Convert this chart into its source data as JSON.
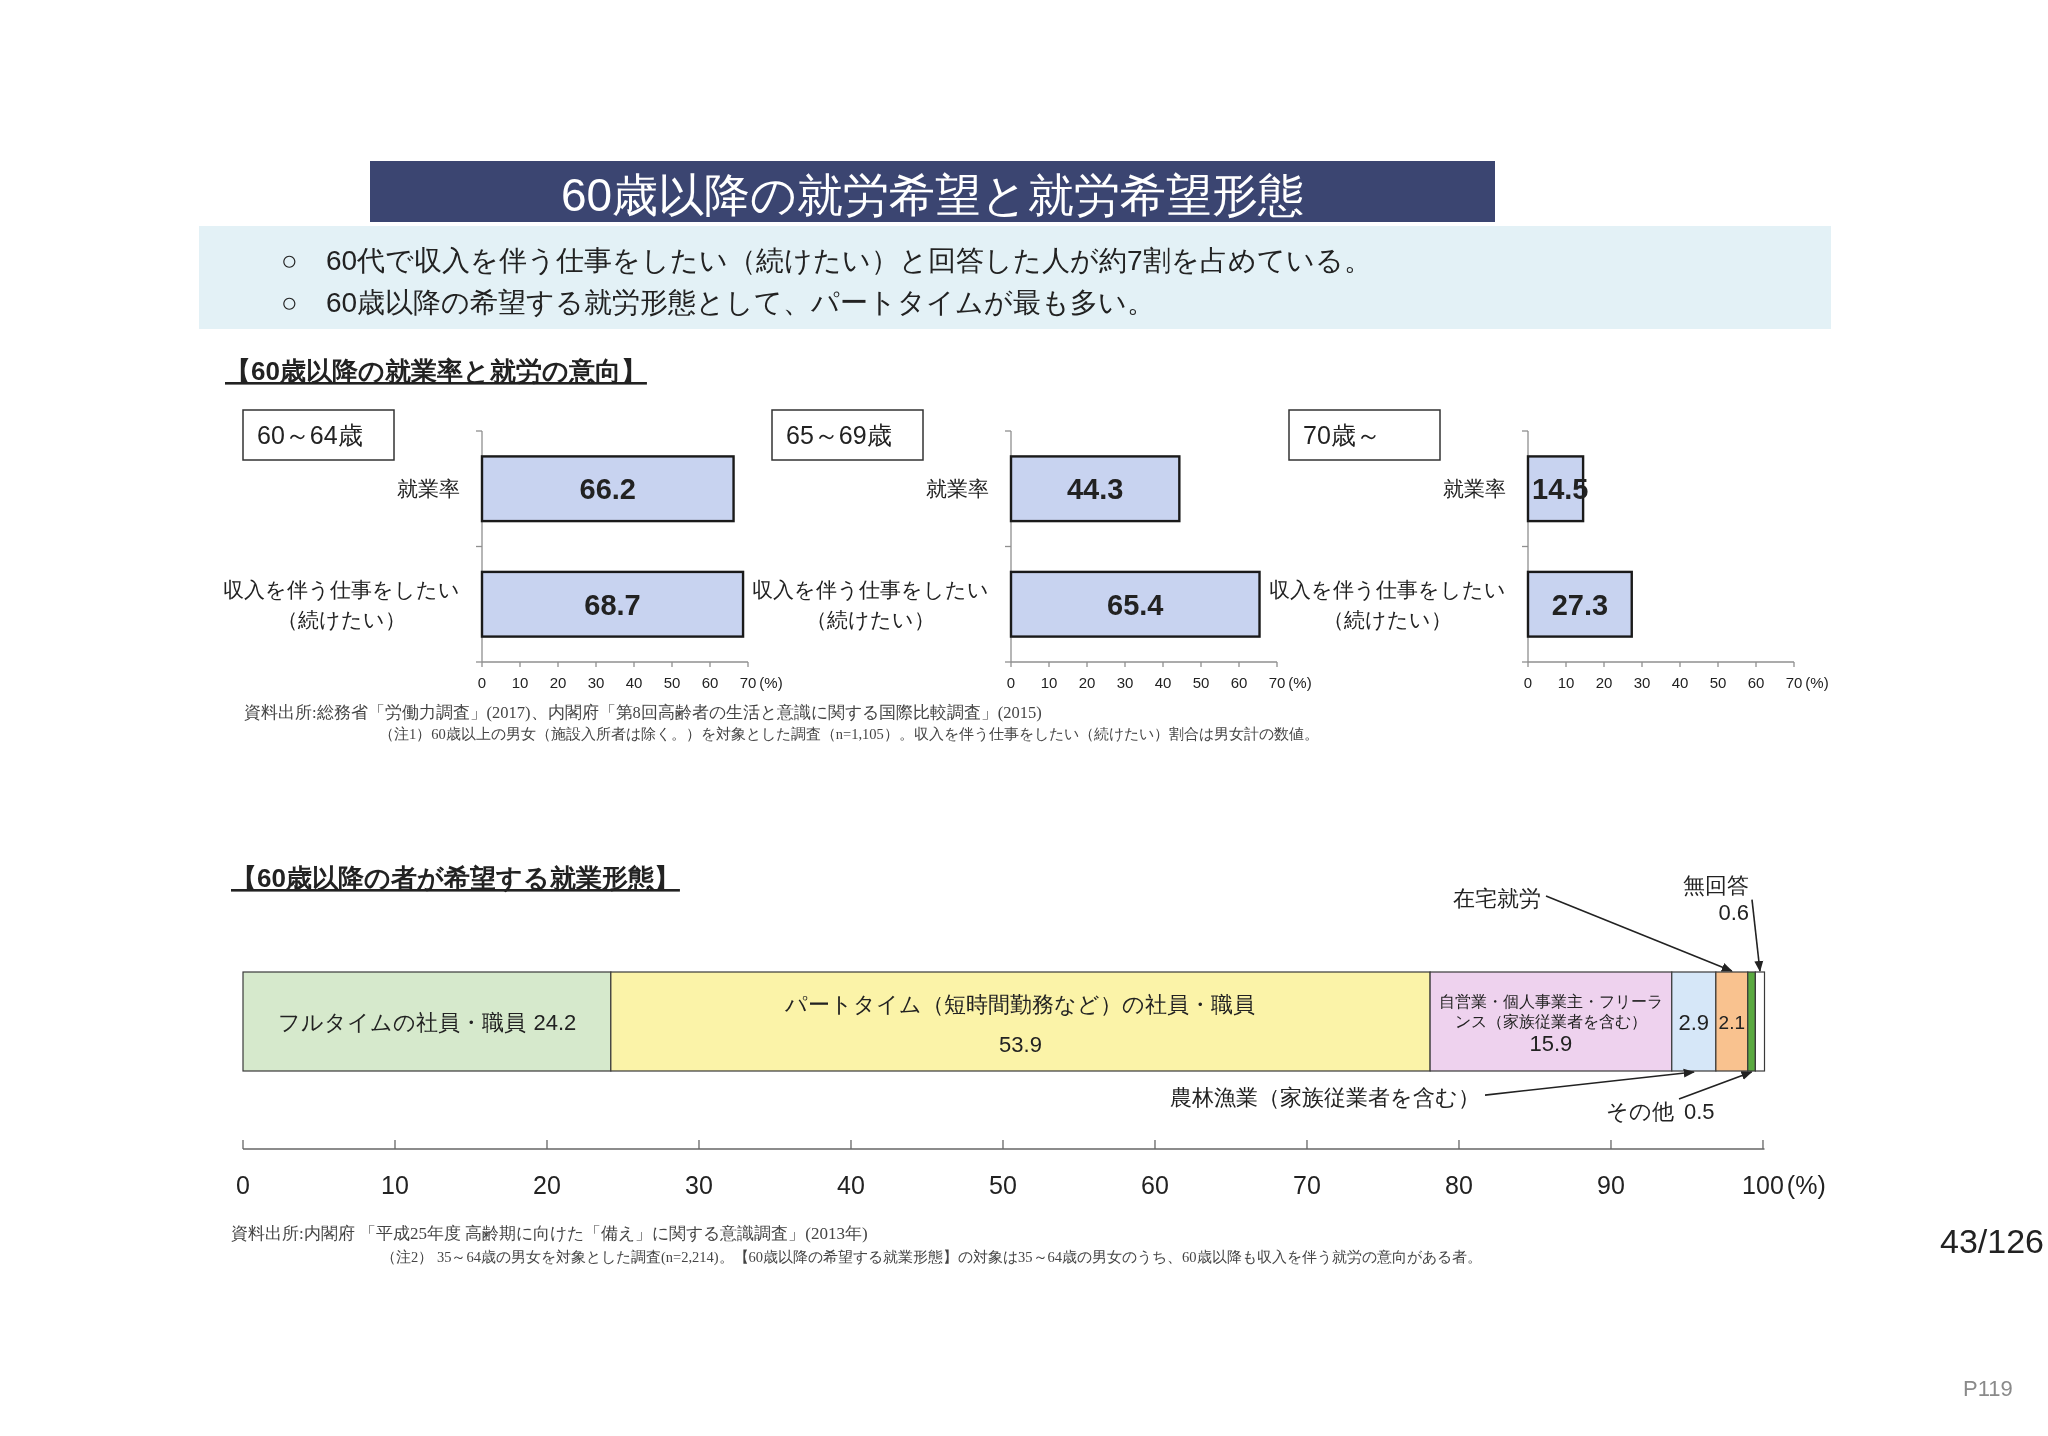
{
  "chart_data": [
    {
      "type": "other",
      "title": "60歳以降の就労希望と就労希望形態",
      "annotations": [
        "○　60代で収入を伴う仕事をしたい（続けたい）と回答した人が約7割を占めている。",
        "○　60歳以降の希望する就労形態として、パートタイムが最も多い。",
        "43/126",
        "P119"
      ]
    },
    {
      "type": "bar",
      "orientation": "horizontal",
      "title": "60～64歳",
      "categories": [
        "就業率",
        "収入を伴う仕事をしたい（続けたい）"
      ],
      "values": [
        66.2,
        68.7
      ],
      "color": "#c8d3f0",
      "xlim": [
        0,
        70
      ],
      "xticks": [
        0,
        10,
        20,
        30,
        40,
        50,
        60,
        70
      ],
      "xlabel": "(%)",
      "data_labels": true,
      "annotations": [
        "【60歳以降の就業率と就労の意向】",
        "資料出所:総務省「労働力調査」(2017)、内閣府「第8回高齢者の生活と意識に関する国際比較調査」(2015)",
        "（注1）60歳以上の男女（施設入所者は除く。）を対象とした調査（n=1,105）。収入を伴う仕事をしたい（続けたい）割合は男女計の数値。"
      ]
    },
    {
      "type": "bar",
      "orientation": "horizontal",
      "title": "65～69歳",
      "categories": [
        "就業率",
        "収入を伴う仕事をしたい（続けたい）"
      ],
      "values": [
        44.3,
        65.4
      ],
      "color": "#c8d3f0",
      "xlim": [
        0,
        70
      ],
      "xticks": [
        0,
        10,
        20,
        30,
        40,
        50,
        60,
        70
      ],
      "xlabel": "(%)",
      "data_labels": true
    },
    {
      "type": "bar",
      "orientation": "horizontal",
      "title": "70歳～",
      "categories": [
        "就業率",
        "収入を伴う仕事をしたい（続けたい）"
      ],
      "values": [
        14.5,
        27.3
      ],
      "color": "#c8d3f0",
      "xlim": [
        0,
        70
      ],
      "xticks": [
        0,
        10,
        20,
        30,
        40,
        50,
        60,
        70
      ],
      "xlabel": "(%)",
      "data_labels": true
    },
    {
      "type": "bar",
      "orientation": "horizontal",
      "stacked": true,
      "title": "【60歳以降の者が希望する就業形態】",
      "categories": [
        null
      ],
      "series": [
        {
          "name": "フルタイムの社員・職員",
          "color": "#d6e9cc",
          "values": [
            24.2
          ]
        },
        {
          "name": "パートタイム（短時間勤務など）の社員・職員",
          "color": "#fbf3a8",
          "values": [
            53.9
          ]
        },
        {
          "name": "自営業・個人事業主・フリーランス（家族従業者を含む）",
          "color": "#eed2ee",
          "values": [
            15.9
          ]
        },
        {
          "name": "農林漁業（家族従業者を含む）",
          "color": "#d6e7f8",
          "values": [
            2.9
          ]
        },
        {
          "name": "在宅就労",
          "color": "#f9c28f",
          "values": [
            2.1
          ]
        },
        {
          "name": "その他",
          "color": "#5aaa40",
          "values": [
            0.5
          ]
        },
        {
          "name": "無回答",
          "color": "#ffffff",
          "values": [
            0.6
          ]
        }
      ],
      "xlim": [
        0,
        100.1
      ],
      "xticks": [
        0,
        10,
        20,
        30,
        40,
        50,
        60,
        70,
        80,
        90,
        100
      ],
      "xlabel": "(%)",
      "data_labels": true,
      "annotations": [
        "資料出所:内閣府 「平成25年度 高齢期に向けた「備え」に関する意識調査」(2013年)",
        "（注2） 35～64歳の男女を対象とした調査(n=2,214)。【60歳以降の希望する就業形態】の対象は35～64歳の男女のうち、60歳以降も収入を伴う就労の意向がある者。"
      ]
    }
  ]
}
